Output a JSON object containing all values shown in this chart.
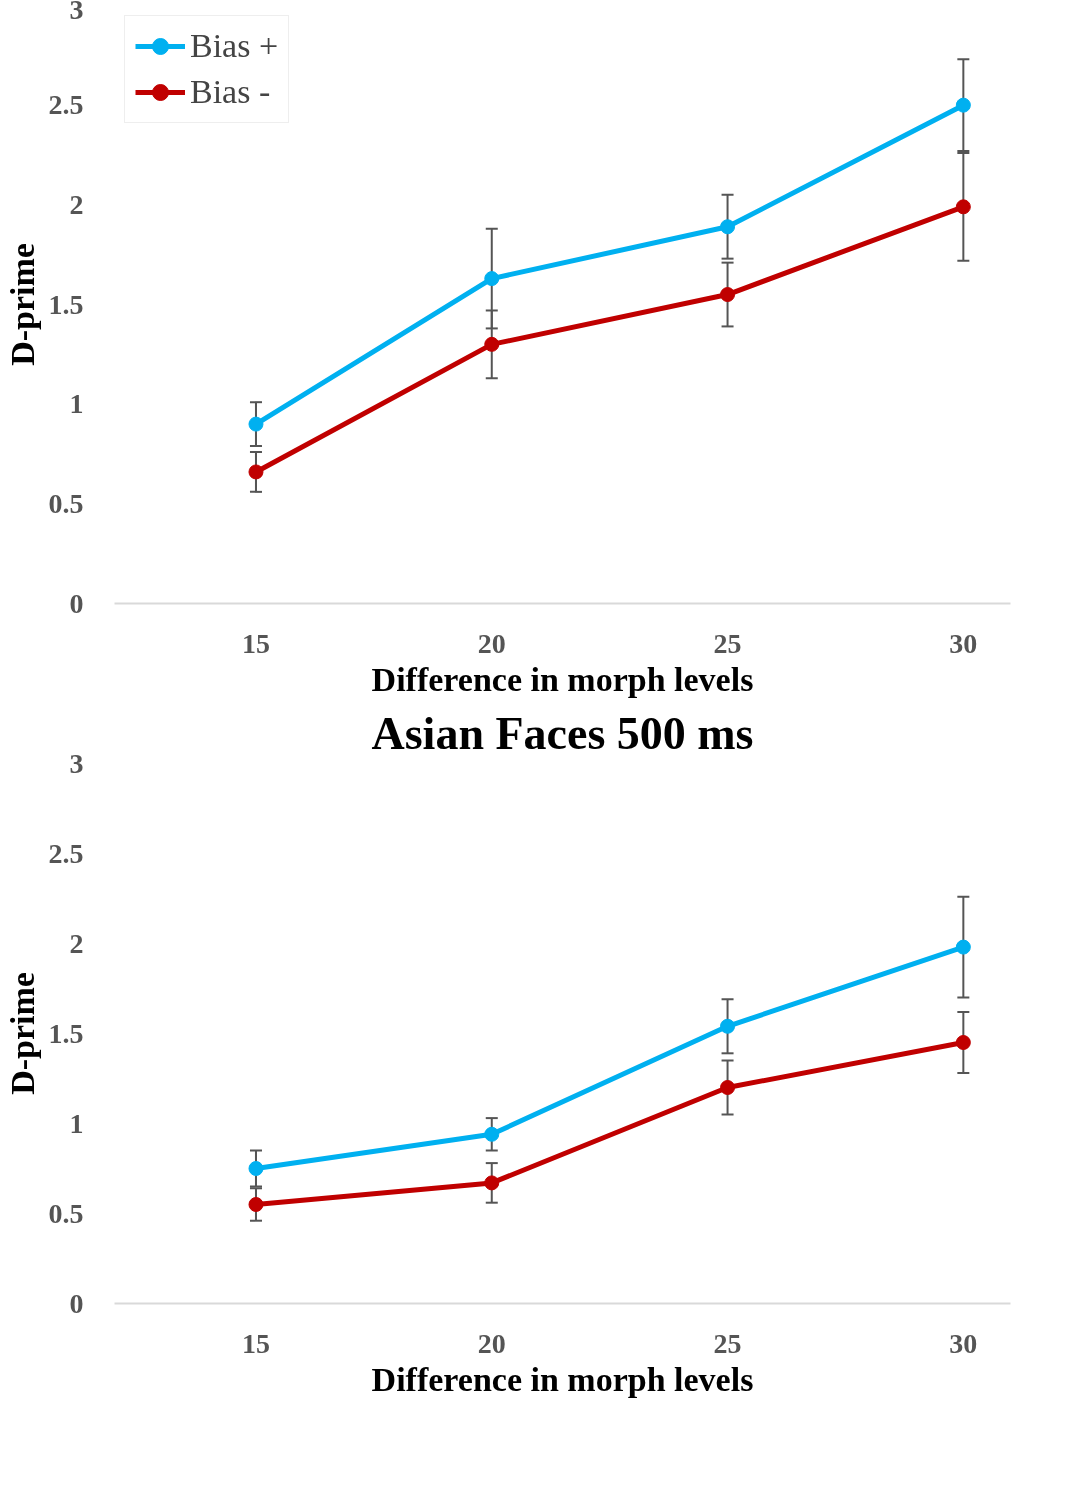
{
  "chart_data": [
    {
      "type": "line",
      "xlabel": "Difference in morph levels",
      "ylabel": "D-prime",
      "x": [
        15,
        20,
        25,
        30
      ],
      "xlim": [
        12,
        31
      ],
      "xticks": [
        15,
        20,
        25,
        30
      ],
      "ylim": [
        0,
        3
      ],
      "yticks": [
        0,
        0.5,
        1,
        1.5,
        2,
        2.5,
        3
      ],
      "marker": "circle",
      "grid": false,
      "legend": "top left",
      "series": [
        {
          "name": "Bias +",
          "color": "#00b0f0",
          "values": [
            0.9,
            1.63,
            1.89,
            2.5
          ],
          "errors": [
            0.11,
            0.25,
            0.16,
            0.23
          ]
        },
        {
          "name": "Bias -",
          "color": "#c00000",
          "values": [
            0.66,
            1.3,
            1.55,
            1.99
          ],
          "errors": [
            0.1,
            0.17,
            0.16,
            0.27
          ]
        }
      ]
    },
    {
      "type": "line",
      "title": "Asian Faces 500 ms",
      "xlabel": "Difference in morph levels",
      "ylabel": "D-prime",
      "x": [
        15,
        20,
        25,
        30
      ],
      "xlim": [
        12,
        31
      ],
      "xticks": [
        15,
        20,
        25,
        30
      ],
      "ylim": [
        0,
        3
      ],
      "yticks": [
        0,
        0.5,
        1,
        1.5,
        2,
        2.5,
        3
      ],
      "marker": "circle",
      "grid": false,
      "series": [
        {
          "color": "#00b0f0",
          "values": [
            0.75,
            0.94,
            1.54,
            1.98
          ],
          "errors": [
            0.1,
            0.09,
            0.15,
            0.28
          ]
        },
        {
          "color": "#c00000",
          "values": [
            0.55,
            0.67,
            1.2,
            1.45
          ],
          "errors": [
            0.09,
            0.11,
            0.15,
            0.17
          ]
        }
      ]
    }
  ]
}
